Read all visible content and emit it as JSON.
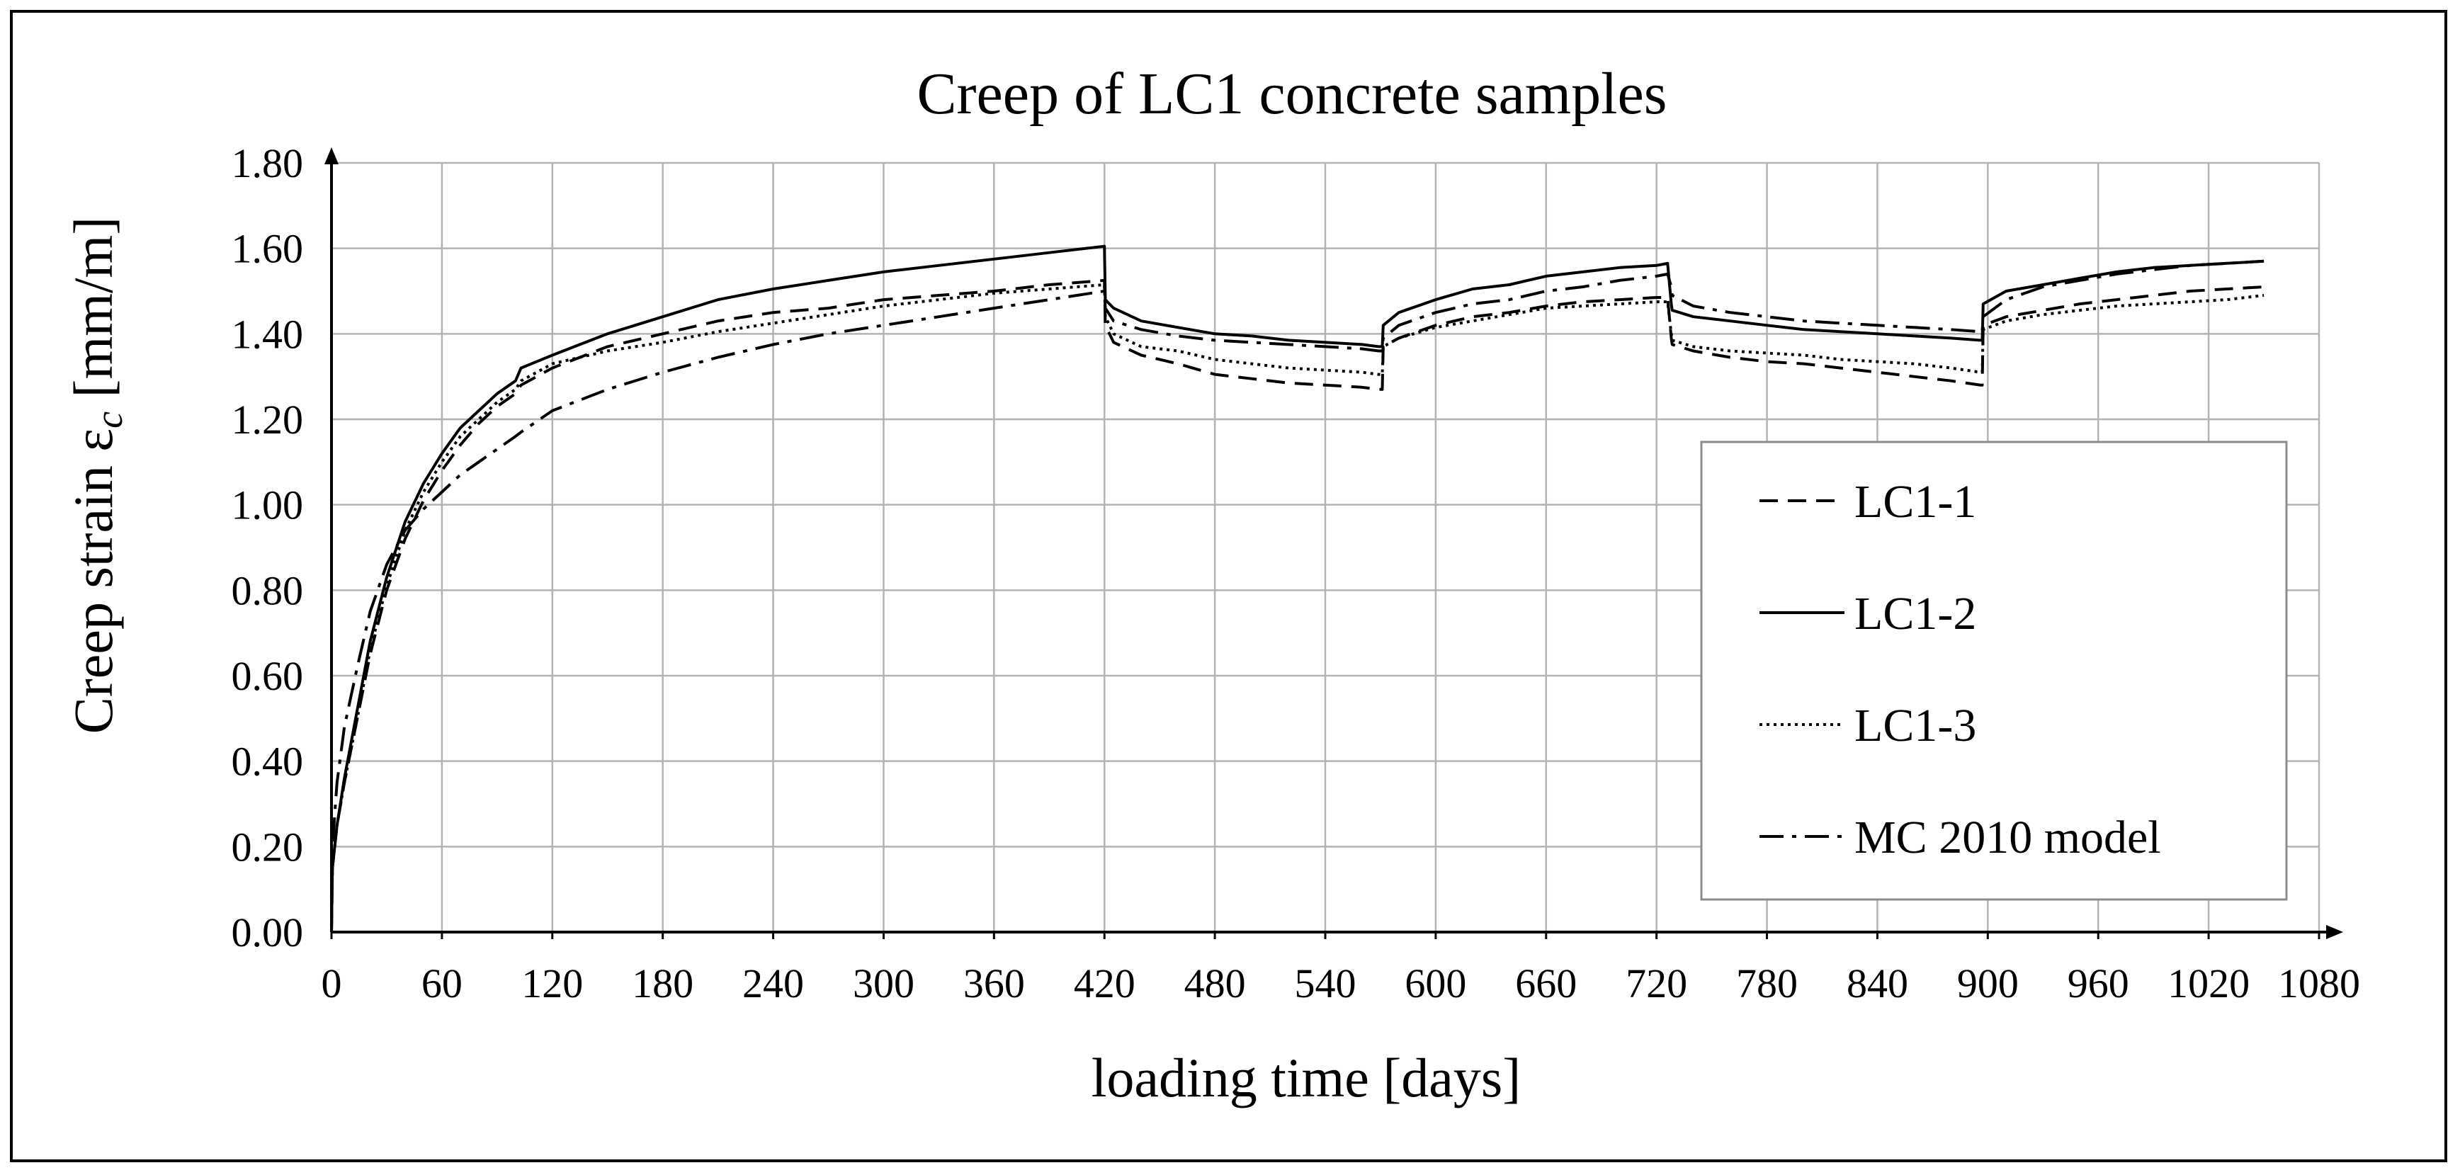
{
  "chart_data": {
    "type": "line",
    "title": "Creep of LC1 concrete samples",
    "xlabel": "loading time [days]",
    "ylabel": "Creep strain ε",
    "ylabel_subscript": "c",
    "ylabel_unit": " [mm/m]",
    "xlim": [
      0,
      1080
    ],
    "ylim": [
      0,
      1.8
    ],
    "x_ticks": [
      0,
      60,
      120,
      180,
      240,
      300,
      360,
      420,
      480,
      540,
      600,
      660,
      720,
      780,
      840,
      900,
      960,
      1020,
      1080
    ],
    "y_ticks": [
      0,
      0.2,
      0.4,
      0.6,
      0.8,
      1.0,
      1.2,
      1.4,
      1.6,
      1.8
    ],
    "x_tick_labels": [
      "0",
      "60",
      "120",
      "180",
      "240",
      "300",
      "360",
      "420",
      "480",
      "540",
      "600",
      "660",
      "720",
      "780",
      "840",
      "900",
      "960",
      "1020",
      "1080"
    ],
    "y_tick_labels": [
      "0.00",
      "0.20",
      "0.40",
      "0.60",
      "0.80",
      "1.00",
      "1.20",
      "1.40",
      "1.60",
      "1.80"
    ],
    "grid": true,
    "legend_position": "right",
    "series": [
      {
        "name": "LC1-1",
        "style": "dashed",
        "x": [
          0,
          0.5,
          3,
          7,
          14,
          21,
          30,
          40,
          50,
          60,
          70,
          80,
          90,
          100,
          103,
          120,
          150,
          180,
          210,
          240,
          270,
          300,
          330,
          360,
          390,
          420,
          420.5,
          425,
          440,
          460,
          480,
          500,
          520,
          540,
          560,
          569,
          571,
          571.5,
          580,
          600,
          620,
          640,
          660,
          680,
          700,
          720,
          726,
          728,
          728.5,
          740,
          760,
          780,
          800,
          820,
          840,
          860,
          880,
          896,
          897,
          897.5,
          910,
          930,
          950,
          970,
          990,
          1010,
          1030,
          1050
        ],
        "y": [
          0.0,
          0.15,
          0.25,
          0.35,
          0.5,
          0.65,
          0.8,
          0.92,
          1.01,
          1.08,
          1.14,
          1.19,
          1.23,
          1.26,
          1.28,
          1.32,
          1.37,
          1.4,
          1.43,
          1.45,
          1.46,
          1.48,
          1.49,
          1.5,
          1.515,
          1.525,
          1.42,
          1.38,
          1.35,
          1.33,
          1.305,
          1.295,
          1.285,
          1.28,
          1.275,
          1.27,
          1.27,
          1.37,
          1.39,
          1.42,
          1.44,
          1.45,
          1.465,
          1.475,
          1.48,
          1.485,
          1.485,
          1.39,
          1.375,
          1.36,
          1.345,
          1.335,
          1.33,
          1.32,
          1.31,
          1.3,
          1.29,
          1.28,
          1.28,
          1.42,
          1.44,
          1.455,
          1.47,
          1.48,
          1.49,
          1.5,
          1.505,
          1.51
        ]
      },
      {
        "name": "LC1-2",
        "style": "solid",
        "x": [
          0,
          0.5,
          3,
          7,
          14,
          21,
          30,
          40,
          50,
          60,
          70,
          80,
          90,
          100,
          103,
          120,
          150,
          180,
          210,
          240,
          270,
          300,
          330,
          360,
          390,
          420,
          420.5,
          425,
          440,
          460,
          480,
          500,
          520,
          540,
          560,
          569,
          571,
          571.5,
          580,
          600,
          620,
          640,
          660,
          680,
          700,
          720,
          726,
          728,
          728.5,
          740,
          760,
          780,
          800,
          820,
          840,
          860,
          880,
          896,
          897,
          897.5,
          910,
          930,
          950,
          970,
          990,
          1010,
          1030,
          1050
        ],
        "y": [
          0.0,
          0.15,
          0.25,
          0.36,
          0.52,
          0.68,
          0.83,
          0.96,
          1.05,
          1.12,
          1.18,
          1.22,
          1.26,
          1.29,
          1.32,
          1.35,
          1.4,
          1.44,
          1.48,
          1.505,
          1.525,
          1.545,
          1.56,
          1.575,
          1.59,
          1.605,
          1.48,
          1.46,
          1.43,
          1.415,
          1.4,
          1.395,
          1.385,
          1.38,
          1.375,
          1.37,
          1.37,
          1.42,
          1.45,
          1.48,
          1.505,
          1.515,
          1.535,
          1.545,
          1.555,
          1.56,
          1.565,
          1.47,
          1.455,
          1.44,
          1.43,
          1.42,
          1.41,
          1.405,
          1.4,
          1.395,
          1.39,
          1.385,
          1.385,
          1.47,
          1.5,
          1.515,
          1.53,
          1.545,
          1.555,
          1.56,
          1.565,
          1.57
        ]
      },
      {
        "name": "LC1-3",
        "style": "dotted",
        "x": [
          0,
          0.5,
          3,
          7,
          14,
          21,
          30,
          40,
          50,
          60,
          70,
          80,
          90,
          100,
          103,
          120,
          150,
          180,
          210,
          240,
          270,
          300,
          330,
          360,
          390,
          420,
          420.5,
          425,
          440,
          460,
          480,
          500,
          520,
          540,
          560,
          569,
          571,
          571.5,
          580,
          600,
          620,
          640,
          660,
          680,
          700,
          720,
          726,
          728,
          728.5,
          740,
          760,
          780,
          800,
          820,
          840,
          860,
          880,
          896,
          897,
          897.5,
          910,
          930,
          950,
          970,
          990,
          1010,
          1030,
          1050
        ],
        "y": [
          0.0,
          0.15,
          0.25,
          0.35,
          0.5,
          0.66,
          0.81,
          0.94,
          1.03,
          1.1,
          1.16,
          1.2,
          1.24,
          1.27,
          1.29,
          1.33,
          1.36,
          1.38,
          1.405,
          1.425,
          1.445,
          1.465,
          1.48,
          1.495,
          1.505,
          1.515,
          1.44,
          1.4,
          1.37,
          1.36,
          1.34,
          1.33,
          1.32,
          1.315,
          1.31,
          1.305,
          1.305,
          1.37,
          1.39,
          1.415,
          1.43,
          1.445,
          1.46,
          1.465,
          1.47,
          1.475,
          1.475,
          1.4,
          1.385,
          1.37,
          1.36,
          1.355,
          1.35,
          1.34,
          1.335,
          1.33,
          1.32,
          1.31,
          1.31,
          1.41,
          1.43,
          1.445,
          1.455,
          1.465,
          1.47,
          1.475,
          1.48,
          1.49
        ]
      },
      {
        "name": "MC 2010 model",
        "style": "dashdot",
        "x": [
          0,
          0.5,
          3,
          7,
          14,
          21,
          30,
          40,
          50,
          60,
          70,
          80,
          90,
          100,
          103,
          120,
          150,
          180,
          210,
          240,
          270,
          300,
          330,
          360,
          390,
          420,
          420.5,
          425,
          440,
          460,
          480,
          500,
          520,
          540,
          560,
          569,
          571,
          571.5,
          580,
          600,
          620,
          640,
          660,
          680,
          700,
          720,
          726,
          728,
          728.5,
          740,
          760,
          780,
          800,
          820,
          840,
          860,
          880,
          896,
          897,
          897.5,
          910,
          930,
          950,
          970,
          990,
          1010,
          1030,
          1050
        ],
        "y": [
          0.0,
          0.2,
          0.35,
          0.48,
          0.62,
          0.75,
          0.86,
          0.94,
          0.99,
          1.03,
          1.07,
          1.1,
          1.13,
          1.16,
          1.17,
          1.22,
          1.27,
          1.31,
          1.345,
          1.375,
          1.4,
          1.42,
          1.44,
          1.46,
          1.48,
          1.5,
          1.46,
          1.43,
          1.41,
          1.395,
          1.385,
          1.38,
          1.375,
          1.37,
          1.365,
          1.36,
          1.36,
          1.39,
          1.42,
          1.45,
          1.47,
          1.48,
          1.5,
          1.51,
          1.525,
          1.535,
          1.54,
          1.51,
          1.49,
          1.465,
          1.45,
          1.44,
          1.43,
          1.425,
          1.42,
          1.415,
          1.41,
          1.405,
          1.405,
          1.44,
          1.48,
          1.51,
          1.525,
          1.54,
          1.55,
          1.56,
          1.565,
          1.57
        ]
      }
    ]
  }
}
